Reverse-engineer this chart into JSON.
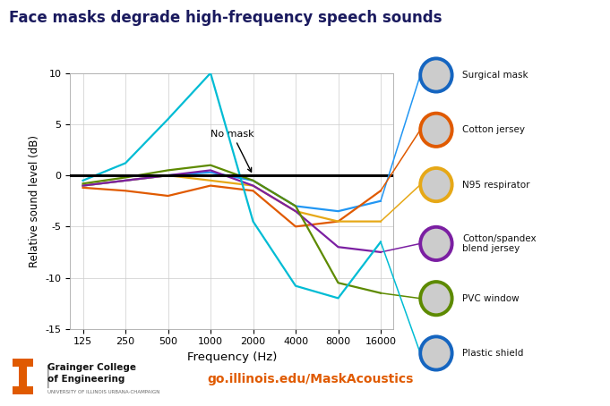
{
  "title": "Face masks degrade high-frequency speech sounds",
  "xlabel": "Frequency (Hz)",
  "ylabel": "Relative sound level (dB)",
  "background_color": "#ffffff",
  "title_color": "#1a1a5e",
  "freq_labels": [
    125,
    250,
    500,
    1000,
    2000,
    4000,
    8000,
    16000
  ],
  "ylim": [
    -15,
    10
  ],
  "yticks": [
    -15,
    -10,
    -5,
    0,
    5,
    10
  ],
  "no_mask_label": "No mask",
  "url_text": "go.illinois.edu/MaskAcoustics",
  "url_color": "#e05a00",
  "institution_line1": "Grainger College",
  "institution_line2": "of Engineering",
  "institution_line3": "UNIVERSITY OF ILLINOIS URBANA-CHAMPAIGN",
  "masks": [
    {
      "name": "Surgical mask",
      "color": "#2196f3",
      "circle_color": "#1565c0",
      "y": [
        -1.0,
        -0.5,
        0.0,
        0.3,
        -0.5,
        -3.0,
        -3.5,
        -2.5
      ]
    },
    {
      "name": "Cotton jersey",
      "color": "#e05a00",
      "circle_color": "#e05a00",
      "y": [
        -1.2,
        -1.5,
        -2.0,
        -1.0,
        -1.5,
        -5.0,
        -4.5,
        -1.5
      ]
    },
    {
      "name": "N95 respirator",
      "color": "#e6a817",
      "circle_color": "#e6a817",
      "y": [
        -1.0,
        -0.5,
        0.0,
        -0.5,
        -1.0,
        -3.5,
        -4.5,
        -4.5
      ]
    },
    {
      "name": "Cotton/spandex\nblend jersey",
      "color": "#7b1fa2",
      "circle_color": "#7b1fa2",
      "y": [
        -1.0,
        -0.5,
        0.0,
        0.5,
        -1.0,
        -3.5,
        -7.0,
        -7.5
      ]
    },
    {
      "name": "PVC window",
      "color": "#5d8a00",
      "circle_color": "#5d8a00",
      "y": [
        -0.8,
        -0.2,
        0.5,
        1.0,
        -0.5,
        -3.0,
        -10.5,
        -11.5
      ]
    },
    {
      "name": "Plastic shield",
      "color": "#00bcd4",
      "circle_color": "#1565c0",
      "y": [
        -0.5,
        1.2,
        5.5,
        10.0,
        -4.5,
        -10.8,
        -12.0,
        -6.5
      ]
    }
  ]
}
